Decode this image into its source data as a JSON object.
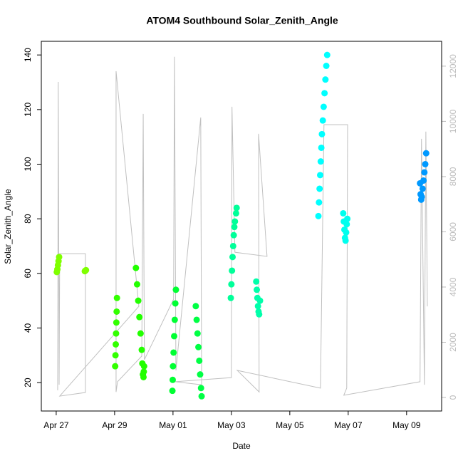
{
  "chart_data": {
    "type": "scatter",
    "title": "ATOM4 Southbound Solar_Zenith_Angle",
    "x_label": "Date",
    "y_label": "Solar_Zenith_Angle",
    "xlim": [
      -0.51,
      13.2
    ],
    "xticks": [
      {
        "value": 0,
        "label": "Apr 27"
      },
      {
        "value": 2,
        "label": "Apr 29"
      },
      {
        "value": 4,
        "label": "May 01"
      },
      {
        "value": 6,
        "label": "May 03"
      },
      {
        "value": 8,
        "label": "May 05"
      },
      {
        "value": 10,
        "label": "May 07"
      },
      {
        "value": 12,
        "label": "May 09"
      }
    ],
    "ylim": [
      9.6,
      145
    ],
    "yticks": [
      20,
      40,
      60,
      80,
      100,
      120,
      140
    ],
    "y2lim": [
      -490,
      12900
    ],
    "y2ticks": [
      0,
      2000,
      4000,
      6000,
      8000,
      10000,
      12000
    ],
    "y2_color": "#bbbbbb",
    "series": [
      {
        "type": "line",
        "axis": "y2",
        "color": "#c0c0c0",
        "x": [
          0.05,
          0.07,
          0.1,
          0.12,
          1.0,
          1.0,
          0.12,
          2.83,
          2.05,
          2.05,
          2.1,
          2.93,
          2.98,
          3.02,
          4.02,
          4.05,
          4.1,
          4.95,
          4.98,
          4.07,
          6.0,
          6.02,
          6.12,
          7.22,
          6.93,
          6.95,
          6.2,
          9.05,
          9.17,
          9.98,
          9.95,
          9.85,
          12.46,
          12.51,
          12.61,
          12.66,
          12.71
        ],
        "values": [
          260,
          11430,
          460,
          5210,
          5210,
          180,
          50,
          3300,
          11820,
          200,
          570,
          1500,
          10270,
          1370,
          3560,
          12340,
          980,
          10140,
          460,
          570,
          720,
          10530,
          5260,
          5110,
          9550,
          200,
          980,
          340,
          9880,
          9880,
          340,
          80,
          570,
          9370,
          460,
          9630,
          3300
        ]
      },
      {
        "color": "#7fff00",
        "x": [
          0.02,
          0.04,
          0.06,
          0.08,
          0.1,
          0.98,
          1.0,
          1.02
        ],
        "values": [
          60.5,
          61.5,
          63,
          64.5,
          66,
          60.8,
          61,
          61.2
        ]
      },
      {
        "color": "#33ff00",
        "x": [
          2.02,
          2.03,
          2.04,
          2.05,
          2.06,
          2.07,
          2.08
        ],
        "values": [
          26,
          30,
          34,
          38,
          42,
          46,
          51
        ]
      },
      {
        "color": "#22ff00",
        "x": [
          2.73,
          2.77,
          2.81,
          2.85,
          2.89,
          2.93,
          2.95,
          2.97,
          2.99,
          3.0,
          3.01
        ],
        "values": [
          62,
          56,
          50,
          44,
          38,
          32,
          27,
          23,
          22,
          24,
          26
        ]
      },
      {
        "color": "#00ff33",
        "x": [
          3.98,
          3.99,
          4.0,
          4.02,
          4.04,
          4.06,
          4.08,
          4.1
        ],
        "values": [
          17,
          21,
          26,
          31,
          37,
          43,
          49,
          54
        ]
      },
      {
        "color": "#00ff44",
        "x": [
          4.78,
          4.81,
          4.84,
          4.87,
          4.9,
          4.93,
          4.96,
          4.98
        ],
        "values": [
          48,
          43,
          38,
          33,
          28,
          23,
          18,
          15
        ]
      },
      {
        "color": "#00ff99",
        "x": [
          5.98,
          6.0,
          6.02,
          6.04,
          6.06,
          6.08,
          6.1,
          6.12,
          6.16,
          6.18
        ],
        "values": [
          51,
          56,
          61,
          66,
          70,
          74,
          77,
          79,
          82,
          84
        ]
      },
      {
        "color": "#00ffaa",
        "x": [
          6.85,
          6.87,
          6.89,
          6.91,
          6.93,
          6.95,
          6.98
        ],
        "values": [
          57,
          54,
          51,
          48,
          46,
          45,
          50
        ]
      },
      {
        "color": "#00ffff",
        "x": [
          8.98,
          9.0,
          9.02,
          9.04,
          9.06,
          9.08,
          9.1,
          9.13,
          9.16,
          9.19,
          9.22,
          9.25,
          9.28
        ],
        "values": [
          81,
          86,
          91,
          96,
          101,
          106,
          111,
          116,
          121,
          126,
          131,
          136,
          140
        ]
      },
      {
        "color": "#00ffee",
        "x": [
          9.83,
          9.85,
          9.87,
          9.89,
          9.91,
          9.93,
          9.95,
          9.97
        ],
        "values": [
          82,
          79,
          76,
          73,
          72,
          75,
          78,
          80
        ]
      },
      {
        "color": "#0099ff",
        "x": [
          12.46,
          12.48,
          12.5,
          12.52,
          12.55,
          12.58,
          12.61,
          12.64,
          12.67
        ],
        "values": [
          93,
          89,
          87,
          88,
          91,
          94,
          97,
          100,
          104
        ]
      }
    ]
  }
}
